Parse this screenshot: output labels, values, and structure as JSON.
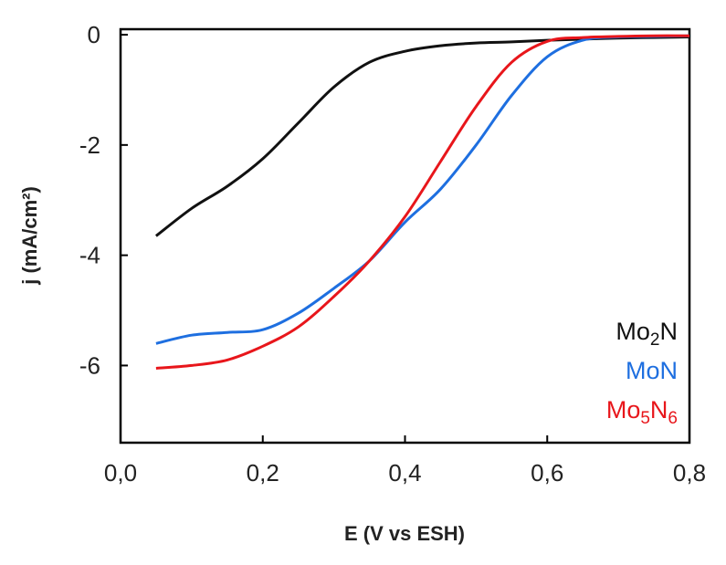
{
  "chart_data": {
    "type": "line",
    "xlabel": "E (V vs ESH)",
    "ylabel": "j (mA/cm²)",
    "xlim": [
      0.0,
      0.8
    ],
    "ylim": [
      -7.4,
      0.1
    ],
    "x_ticks": [
      "0,0",
      "0,2",
      "0,4",
      "0,6",
      "0,8"
    ],
    "y_ticks": [
      "0",
      "-2",
      "-4",
      "-6"
    ],
    "grid": false,
    "legend_position": "bottom-right",
    "series": [
      {
        "name": "Mo2N",
        "name_base": "Mo",
        "name_sub": "2",
        "name_rest": "N",
        "color": "#111111",
        "x": [
          0.05,
          0.1,
          0.15,
          0.2,
          0.25,
          0.3,
          0.35,
          0.4,
          0.45,
          0.5,
          0.55,
          0.6,
          0.65,
          0.7,
          0.75,
          0.8
        ],
        "y": [
          -3.65,
          -3.15,
          -2.75,
          -2.25,
          -1.6,
          -0.95,
          -0.5,
          -0.3,
          -0.2,
          -0.15,
          -0.13,
          -0.1,
          -0.08,
          -0.06,
          -0.05,
          -0.04
        ]
      },
      {
        "name": "MoN",
        "name_base": "MoN",
        "name_sub": "",
        "name_rest": "",
        "color": "#1e6fe0",
        "x": [
          0.05,
          0.1,
          0.15,
          0.2,
          0.25,
          0.3,
          0.35,
          0.4,
          0.45,
          0.5,
          0.55,
          0.6,
          0.65,
          0.7,
          0.75,
          0.8
        ],
        "y": [
          -5.6,
          -5.45,
          -5.4,
          -5.35,
          -5.05,
          -4.6,
          -4.1,
          -3.4,
          -2.8,
          -2.0,
          -1.1,
          -0.4,
          -0.1,
          -0.04,
          -0.03,
          -0.02
        ]
      },
      {
        "name": "Mo5N6",
        "name_base": "Mo",
        "name_sub": "5",
        "name_rest": "N",
        "name_sub2": "6",
        "color": "#e8161b",
        "x": [
          0.05,
          0.1,
          0.15,
          0.2,
          0.25,
          0.3,
          0.35,
          0.4,
          0.45,
          0.5,
          0.55,
          0.6,
          0.65,
          0.7,
          0.75,
          0.8
        ],
        "y": [
          -6.05,
          -6.0,
          -5.9,
          -5.65,
          -5.3,
          -4.75,
          -4.1,
          -3.3,
          -2.3,
          -1.3,
          -0.5,
          -0.12,
          -0.05,
          -0.03,
          -0.02,
          -0.02
        ]
      }
    ]
  }
}
